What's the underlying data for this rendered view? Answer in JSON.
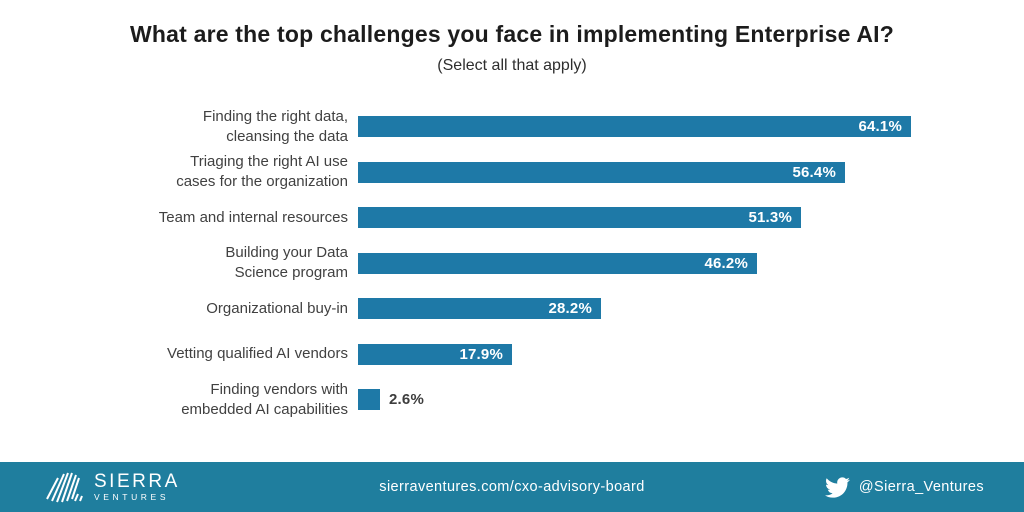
{
  "title": "What are the top challenges you face in implementing Enterprise AI?",
  "subtitle": "(Select all that apply)",
  "chart_data": {
    "type": "bar",
    "orientation": "horizontal",
    "title": "What are the top challenges you face in implementing Enterprise AI?",
    "subtitle": "(Select all that apply)",
    "categories": [
      "Finding the right data,\ncleansing the data",
      "Triaging the right AI use\ncases for the organization",
      "Team and internal resources",
      "Building your Data\nScience program",
      "Organizational buy-in",
      "Vetting qualified AI vendors",
      "Finding vendors with\nembedded AI capabilities"
    ],
    "values": [
      64.1,
      56.4,
      51.3,
      46.2,
      28.2,
      17.9,
      2.6
    ],
    "value_labels": [
      "64.1%",
      "56.4%",
      "51.3%",
      "46.2%",
      "28.2%",
      "17.9%",
      "2.6%"
    ],
    "xlim": [
      0,
      70
    ],
    "grid": false,
    "legend": false,
    "bar_color": "#1E79A7",
    "value_label_color_inside": "#FFFFFF",
    "value_label_color_outside": "#3D3D3D"
  },
  "footer": {
    "bg_color": "#1F7E9E",
    "logo_line1": "SIERRA",
    "logo_line2": "VENTURES",
    "url": "sierraventures.com/cxo-advisory-board",
    "twitter_handle": "@Sierra_Ventures"
  }
}
